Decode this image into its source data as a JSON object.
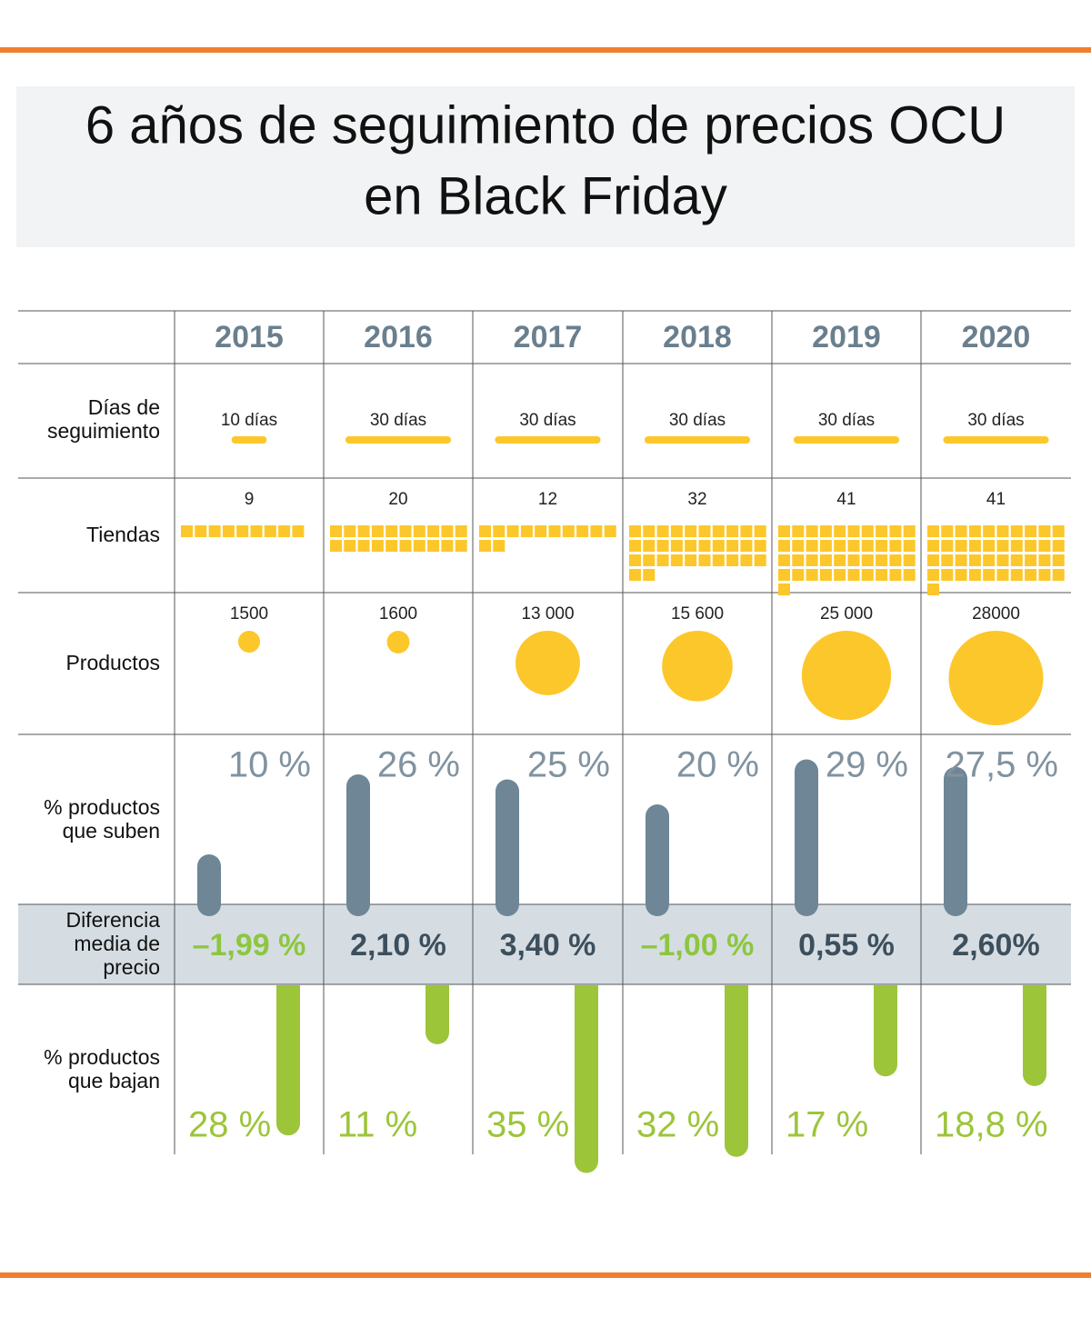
{
  "header": {
    "title_lines": [
      "6 años de seguimiento de precios OCU",
      "en Black Friday"
    ]
  },
  "table": {
    "years": [
      "2015",
      "2016",
      "2017",
      "2018",
      "2019",
      "2020"
    ],
    "row_labels": {
      "days": [
        "Días de",
        "seguimiento"
      ],
      "stores": [
        "Tiendas"
      ],
      "products": [
        "Productos"
      ],
      "up": [
        "% productos",
        "que suben"
      ],
      "diff": [
        "Diferencia",
        "media de",
        "precio"
      ],
      "down": [
        "% productos",
        "que bajan"
      ]
    },
    "days": [
      {
        "value": 10,
        "label": "10 días"
      },
      {
        "value": 30,
        "label": "30 días"
      },
      {
        "value": 30,
        "label": "30 días"
      },
      {
        "value": 30,
        "label": "30 días"
      },
      {
        "value": 30,
        "label": "30 días"
      },
      {
        "value": 30,
        "label": "30 días"
      }
    ],
    "stores": [
      9,
      20,
      12,
      32,
      41,
      41
    ],
    "products": [
      1500,
      1600,
      {
        "value": 13000,
        "label": "13 000"
      },
      {
        "value": 15600,
        "label": "15 600"
      },
      {
        "value": 25000,
        "label": "25 000"
      },
      28000
    ],
    "up": [
      {
        "value": 10,
        "label": "10 %"
      },
      {
        "value": 26,
        "label": "26 %"
      },
      {
        "value": 25,
        "label": "25 %"
      },
      {
        "value": 20,
        "label": "20 %"
      },
      {
        "value": 29,
        "label": "29 %"
      },
      {
        "value": 27.5,
        "label": "27,5 %"
      }
    ],
    "diff": [
      "–1,99 %",
      "2,10 %",
      "3,40 %",
      "–1,00 %",
      "0,55 %",
      "2,60%"
    ],
    "down": [
      {
        "value": 28,
        "label": "28 %"
      },
      {
        "value": 11,
        "label": "11 %"
      },
      {
        "value": 35,
        "label": "35 %"
      },
      {
        "value": 32,
        "label": "32 %"
      },
      {
        "value": 17,
        "label": "17 %"
      },
      {
        "value": 18.8,
        "label": "18,8 %"
      }
    ],
    "colors": {
      "accent": "#f07f2d",
      "yellow": "#fcc72a",
      "up": "#6e8696",
      "down": "#9cc53a",
      "negative": "#8dc63f",
      "positive": "#3d4f5c",
      "band": "#d5dde3"
    }
  }
}
